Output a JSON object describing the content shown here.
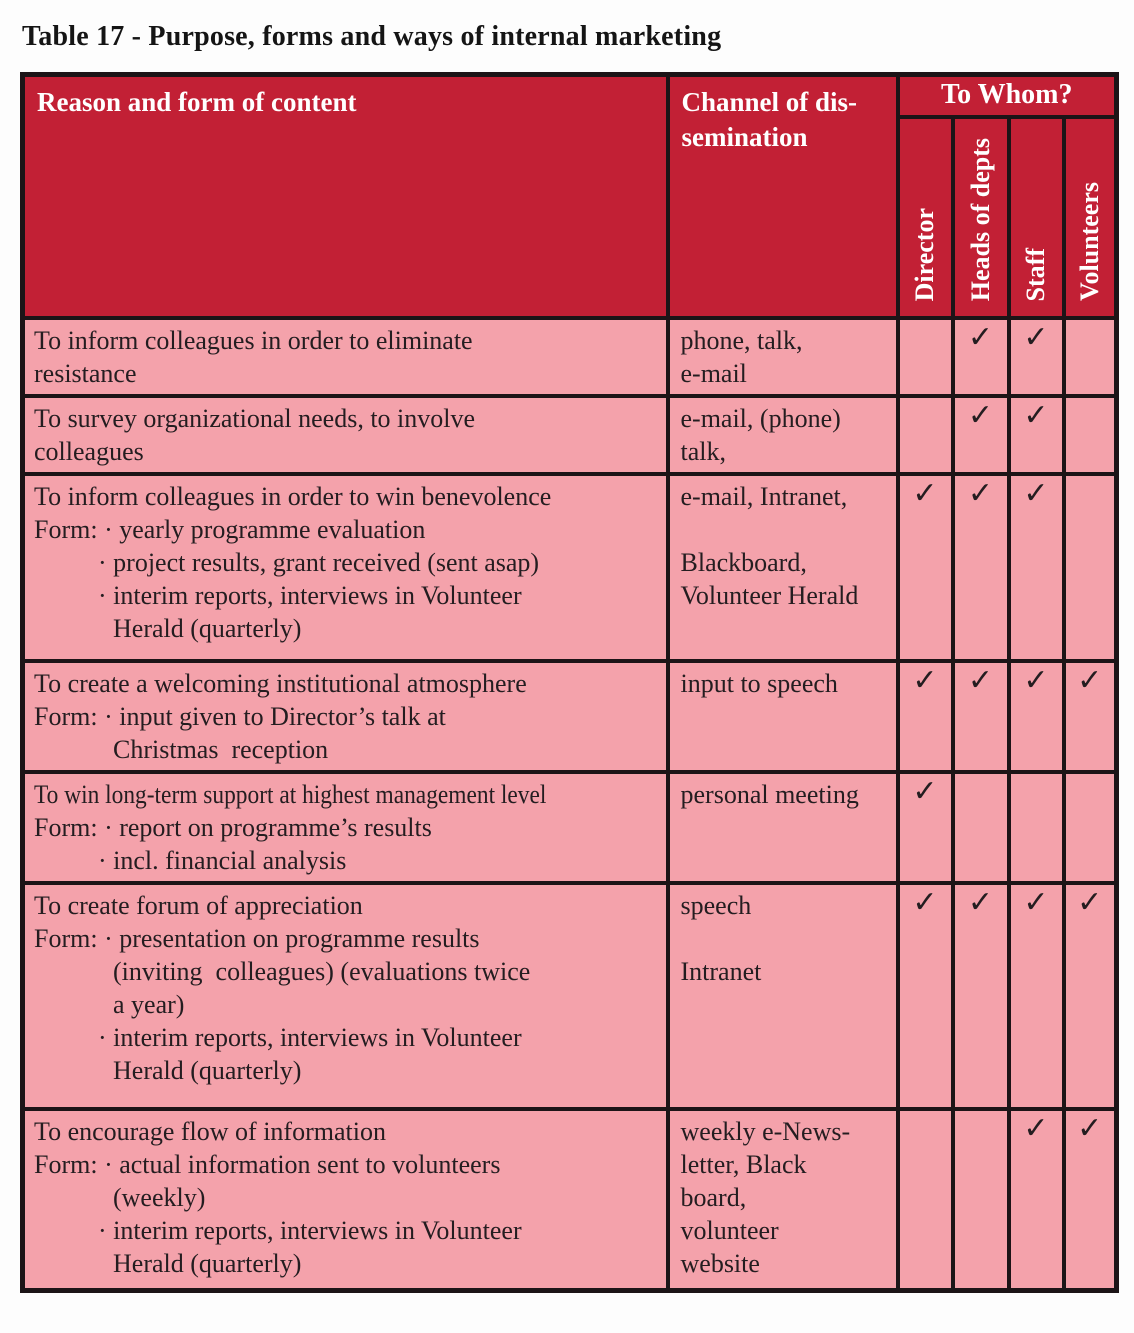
{
  "title": "Table 17 - Purpose, forms and ways of internal marketing",
  "colors": {
    "header_bg": "#c22035",
    "row_bg": "#f4a2ab",
    "border": "#1c1417",
    "header_text": "#ffffff",
    "body_text": "#241d20"
  },
  "check_glyph": "✓",
  "header": {
    "reason": "Reason and form of content",
    "channel_lines": [
      "Channel of dis-",
      "semination"
    ],
    "to_whom": "To Whom?",
    "audiences": [
      "Director",
      "Heads of depts",
      "Staff",
      "Volunteers"
    ]
  },
  "rows": [
    {
      "reason_lines": [
        {
          "t": "To inform colleagues in order to eliminate",
          "i": "plain"
        },
        {
          "t": "resistance",
          "i": "plain"
        }
      ],
      "channel_lines": [
        "phone, talk,",
        "e-mail"
      ],
      "checks": [
        false,
        true,
        true,
        false
      ]
    },
    {
      "reason_lines": [
        {
          "t": "To survey organizational needs, to involve",
          "i": "plain"
        },
        {
          "t": "colleagues",
          "i": "plain"
        }
      ],
      "channel_lines": [
        "e-mail, (phone)",
        "talk,"
      ],
      "checks": [
        false,
        true,
        true,
        false
      ]
    },
    {
      "reason_lines": [
        {
          "t": "To inform colleagues in order to win benevolence",
          "i": "plain"
        },
        {
          "t": "Form: · yearly programme evaluation",
          "i": "plain"
        },
        {
          "t": "· project results, grant received (sent asap)",
          "i": "bullet"
        },
        {
          "t": "· interim reports, interviews in Volunteer",
          "i": "bullet"
        },
        {
          "t": "Herald (quarterly)",
          "i": "cont"
        }
      ],
      "channel_lines": [
        "e-mail, Intranet,",
        "",
        "Blackboard,",
        "Volunteer Herald"
      ],
      "checks": [
        true,
        true,
        true,
        false
      ]
    },
    {
      "reason_lines": [
        {
          "t": "To create a welcoming institutional atmosphere",
          "i": "plain"
        },
        {
          "t": "Form: · input given to Director’s talk at",
          "i": "plain"
        },
        {
          "t": "Christmas  reception",
          "i": "cont"
        }
      ],
      "channel_lines": [
        "input to speech"
      ],
      "checks": [
        true,
        true,
        true,
        true
      ]
    },
    {
      "reason_lines": [
        {
          "t": "To win long-term support at highest management level",
          "i": "plain",
          "c": true
        },
        {
          "t": "Form: · report on programme’s results",
          "i": "plain"
        },
        {
          "t": "· incl. financial analysis",
          "i": "bullet"
        }
      ],
      "channel_lines": [
        "personal meeting"
      ],
      "checks": [
        true,
        false,
        false,
        false
      ]
    },
    {
      "reason_lines": [
        {
          "t": "To create forum of appreciation",
          "i": "plain"
        },
        {
          "t": "Form: · presentation on programme results",
          "i": "plain"
        },
        {
          "t": "(inviting  colleagues) (evaluations twice",
          "i": "cont"
        },
        {
          "t": "a year)",
          "i": "cont"
        },
        {
          "t": "· interim reports, interviews in Volunteer",
          "i": "bullet"
        },
        {
          "t": "Herald (quarterly)",
          "i": "cont"
        }
      ],
      "channel_lines": [
        "speech",
        "",
        "Intranet"
      ],
      "checks": [
        true,
        true,
        true,
        true
      ]
    },
    {
      "reason_lines": [
        {
          "t": "To encourage flow of information",
          "i": "plain"
        },
        {
          "t": "Form: · actual information sent to volunteers",
          "i": "plain"
        },
        {
          "t": "(weekly)",
          "i": "cont"
        },
        {
          "t": "· interim reports, interviews in Volunteer",
          "i": "bullet"
        },
        {
          "t": "Herald (quarterly)",
          "i": "cont"
        }
      ],
      "channel_lines": [
        "weekly e-News-",
        "letter, Black",
        "board,",
        "volunteer",
        "website"
      ],
      "checks": [
        false,
        false,
        true,
        true
      ]
    }
  ]
}
